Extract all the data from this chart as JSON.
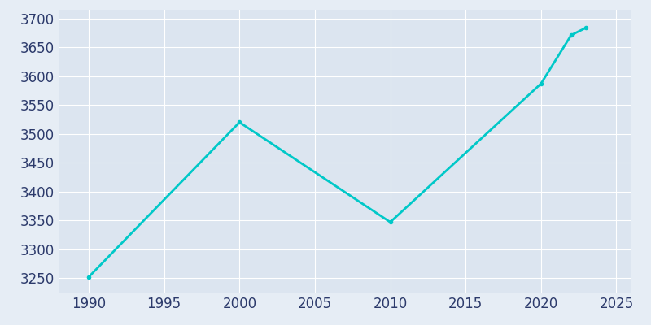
{
  "years": [
    1990,
    2000,
    2010,
    2020,
    2022,
    2023
  ],
  "population": [
    3252,
    3520,
    3347,
    3587,
    3671,
    3684
  ],
  "line_color": "#00C8C8",
  "marker": "o",
  "marker_size": 4,
  "background_color": "#E6EDF5",
  "plot_background_color": "#DCE5F0",
  "grid_color": "#FFFFFF",
  "tick_color": "#2C3A6B",
  "xlim": [
    1988,
    2026
  ],
  "ylim": [
    3225,
    3715
  ],
  "xticks": [
    1990,
    1995,
    2000,
    2005,
    2010,
    2015,
    2020,
    2025
  ],
  "yticks": [
    3250,
    3300,
    3350,
    3400,
    3450,
    3500,
    3550,
    3600,
    3650,
    3700
  ],
  "line_width": 2.0,
  "tick_fontsize": 12
}
